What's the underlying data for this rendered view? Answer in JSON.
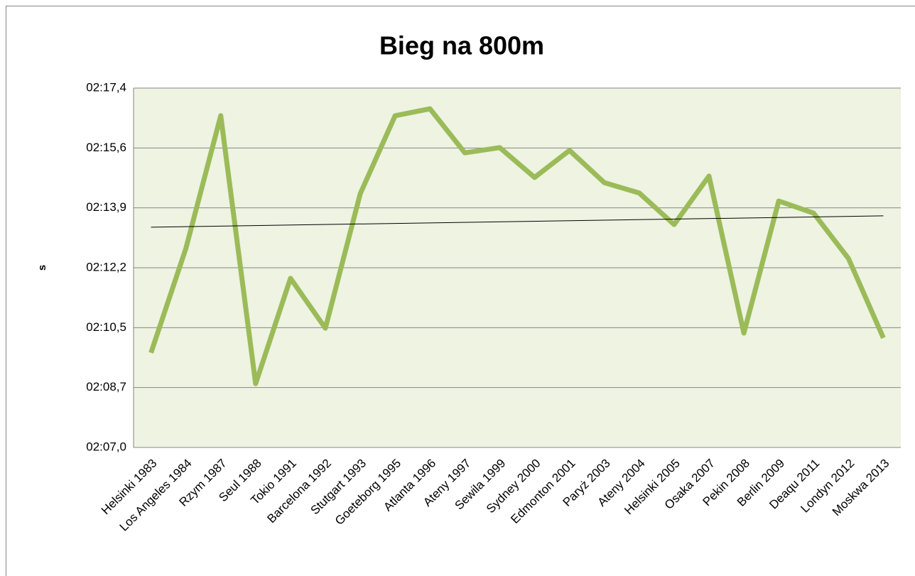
{
  "chart_data": {
    "type": "line",
    "title": "Bieg na 800m",
    "y_label": "s",
    "categories": [
      "Helsinki 1983",
      "Los Angeles 1984",
      "Rzym 1987",
      "Seul 1988",
      "Tokio 1991",
      "Barcelona 1992",
      "Stutgart 1993",
      "Goeteborg 1995",
      "Atlanta 1996",
      "Ateny 1997",
      "Sewila 1999",
      "Sydney 2000",
      "Edmonton 2001",
      "Paryż 2003",
      "Ateny 2004",
      "Helsinki 2005",
      "Osaka 2007",
      "Pekin 2008",
      "Berlin 2009",
      "Deaqu 2011",
      "Londyn 2012",
      "Moskwa 2013"
    ],
    "values": [
      129.73,
      132.74,
      136.57,
      128.84,
      131.88,
      130.44,
      134.32,
      136.57,
      136.77,
      135.5,
      135.65,
      134.79,
      135.57,
      134.64,
      134.34,
      133.43,
      134.83,
      130.3,
      134.11,
      133.76,
      132.45,
      130.16
    ],
    "color": "#9bbb59",
    "trendline": true,
    "ylim": [
      127.0,
      137.368
    ],
    "yticks": [
      {
        "value": 127.0,
        "label": "02:07,0"
      },
      {
        "value": 128.728,
        "label": "02:08,7"
      },
      {
        "value": 130.456,
        "label": "02:10,5"
      },
      {
        "value": 132.184,
        "label": "02:12,2"
      },
      {
        "value": 133.912,
        "label": "02:13,9"
      },
      {
        "value": 135.64,
        "label": "02:15,6"
      },
      {
        "value": 137.368,
        "label": "02:17,4"
      }
    ],
    "grid": true
  }
}
